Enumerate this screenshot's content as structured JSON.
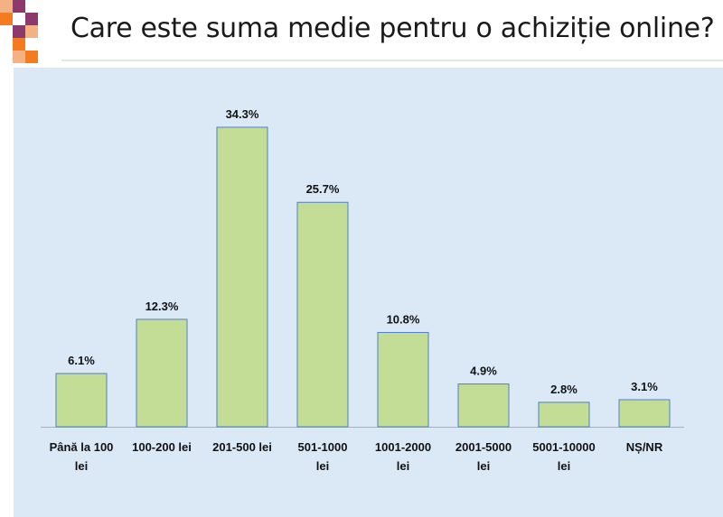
{
  "title": "Care este suma medie pentru o achiziție online?",
  "colors": {
    "bar_fill": "#c3dd96",
    "bar_stroke": "#4f81bd",
    "panel_bg": "#dbe9f7",
    "deco_orange": "#f47b20",
    "deco_purple": "#8b3a6b"
  },
  "chart_data": {
    "type": "bar",
    "title": "Care este suma medie pentru o achiziție online?",
    "categories": [
      [
        "Până la 100",
        "lei"
      ],
      [
        "100-200 lei"
      ],
      [
        "201-500 lei"
      ],
      [
        "501-1000",
        "lei"
      ],
      [
        "1001-2000",
        "lei"
      ],
      [
        "2001-5000",
        "lei"
      ],
      [
        "5001-10000",
        "lei"
      ],
      [
        "NȘ/NR"
      ]
    ],
    "values": [
      6.1,
      12.3,
      34.3,
      25.7,
      10.8,
      4.9,
      2.8,
      3.1
    ],
    "value_labels": [
      "6.1%",
      "12.3%",
      "34.3%",
      "25.7%",
      "10.8%",
      "4.9%",
      "2.8%",
      "3.1%"
    ],
    "unit": "%",
    "ylim": [
      0,
      40
    ],
    "grid": false,
    "legend": "none"
  }
}
